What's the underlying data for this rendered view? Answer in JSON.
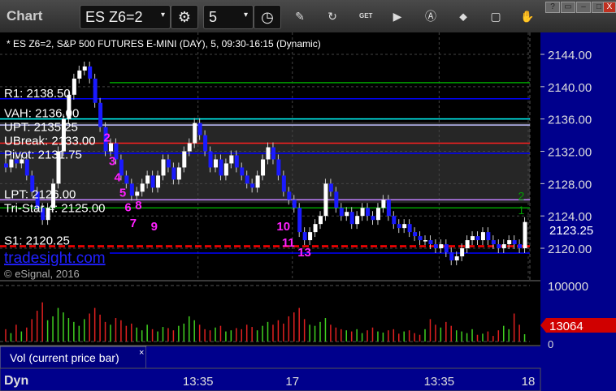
{
  "window": {
    "title": "Chart",
    "symbol": "ES Z6=2",
    "interval": "5",
    "buttons": [
      "?",
      "▭",
      "–",
      "□",
      "X"
    ]
  },
  "toolbar_icons": [
    "settings-icon",
    "clock-icon",
    "pencil-icon",
    "refresh-icon",
    "get-icon",
    "play-icon",
    "alert-icon",
    "link-icon",
    "comment-icon",
    "hand-icon"
  ],
  "chart_data": {
    "type": "candlestick",
    "title": "* ES Z6=2, S&P 500 FUTURES E-MINI (DAY), 5, 09:30-16:15 (Dynamic)",
    "ylim": [
      2116,
      2146
    ],
    "yticks": [
      "2144.00",
      "2140.00",
      "2136.00",
      "2132.00",
      "2128.00",
      "2124.00",
      "2120.00"
    ],
    "last_price": "2123.25",
    "xticks": [
      {
        "bar": 37,
        "label": "13:35"
      },
      {
        "bar": 55,
        "label": "17"
      },
      {
        "bar": 83,
        "label": "13:35"
      },
      {
        "bar": 100,
        "label": "18"
      }
    ],
    "closes": [
      2130,
      2131,
      2130.5,
      2131,
      2129,
      2127,
      2125,
      2123.5,
      2125,
      2128,
      2132,
      2136,
      2139,
      2141,
      2142,
      2142.5,
      2141,
      2138,
      2135,
      2132,
      2133,
      2131,
      2129,
      2128,
      2126.5,
      2127,
      2128,
      2129,
      2127.5,
      2129,
      2131,
      2130,
      2128.5,
      2130,
      2132,
      2133,
      2135.5,
      2134,
      2132,
      2130,
      2131,
      2129,
      2130.5,
      2131.5,
      2130,
      2129,
      2128,
      2127.5,
      2129,
      2131,
      2132.5,
      2131,
      2129,
      2127,
      2126,
      2125,
      2122,
      2121,
      2122,
      2123,
      2124,
      2128,
      2127,
      2125,
      2124,
      2124.5,
      2123,
      2124,
      2125,
      2124,
      2123.5,
      2125,
      2126,
      2124,
      2123,
      2122.5,
      2123,
      2122,
      2121.5,
      2121,
      2121,
      2120.5,
      2120,
      2120.5,
      2119.5,
      2118.5,
      2119,
      2120,
      2121,
      2121.5,
      2121,
      2122,
      2121,
      2120.5,
      2120,
      2120.5,
      2121,
      2120.5,
      2120,
      2123.25
    ],
    "levels": [
      {
        "label": "R1: 2138.50",
        "price": 2138.5,
        "color": "#0000ff"
      },
      {
        "label": "VAH: 2136.00",
        "price": 2136.0,
        "color": "#00ffff"
      },
      {
        "label": "UPT: 2135.25",
        "price": 2135.25,
        "color": "#c0c0ff"
      },
      {
        "label": "UBreak: 2133.00",
        "price": 2133.0,
        "color": "#ff2020"
      },
      {
        "label": "Pivot: 2131.75",
        "price": 2131.75,
        "color": "#0000ff"
      },
      {
        "label": "LPT: 2126.00",
        "price": 2126.0,
        "color": "#c080ff"
      },
      {
        "label": "Tri-Star 4: 2125.00",
        "price": 2125.0,
        "color": "#00a000"
      },
      {
        "label": "S1: 2120.25",
        "price": 2120.25,
        "color": "#ff0000",
        "dashed": true
      }
    ],
    "extra_lines": [
      {
        "price": 2140.5,
        "color": "#00a000"
      },
      {
        "price": 2119.4,
        "color": "#0000ff"
      }
    ],
    "counts": [
      {
        "text": "2",
        "bar": 19,
        "price": 2133.2
      },
      {
        "text": "3",
        "bar": 20,
        "price": 2130.3
      },
      {
        "text": "4",
        "bar": 21,
        "price": 2129.1
      },
      {
        "text": "5",
        "bar": 22,
        "price": 2127.6
      },
      {
        "text": "6",
        "bar": 23,
        "price": 2125.4
      },
      {
        "text": "7",
        "bar": 24,
        "price": 2125.0
      },
      {
        "text": "8",
        "bar": 25,
        "price": 2124.8
      },
      {
        "text": "9",
        "bar": 28,
        "price": 2122.2
      },
      {
        "text": "10",
        "bar": 52,
        "price": 2122.2
      },
      {
        "text": "11",
        "bar": 53,
        "price": 2121.0
      },
      {
        "text": "13",
        "bar": 56,
        "price": 2119.0
      }
    ],
    "green_counts": [
      {
        "text": "2",
        "bar": 99,
        "price": 2126.0
      },
      {
        "text": "1",
        "bar": 99,
        "price": 2125.0
      }
    ],
    "volume": {
      "label": "Vol (current price bar)",
      "max_tick": "100000",
      "min_tick": "0",
      "last": "13064",
      "values": [
        22000,
        15000,
        30000,
        18000,
        25000,
        40000,
        55000,
        70000,
        38000,
        45000,
        60000,
        52000,
        42000,
        35000,
        28000,
        40000,
        50000,
        60000,
        48000,
        35000,
        30000,
        42000,
        38000,
        28000,
        32000,
        25000,
        20000,
        30000,
        22000,
        18000,
        26000,
        24000,
        20000,
        28000,
        32000,
        45000,
        38000,
        30000,
        22000,
        20000,
        25000,
        28000,
        18000,
        20000,
        24000,
        22000,
        30000,
        26000,
        20000,
        28000,
        35000,
        30000,
        38000,
        32000,
        45000,
        52000,
        60000,
        40000,
        30000,
        28000,
        35000,
        42000,
        30000,
        25000,
        22000,
        20000,
        18000,
        22000,
        15000,
        20000,
        25000,
        18000,
        16000,
        20000,
        22000,
        14000,
        18000,
        20000,
        15000,
        12000,
        22000,
        40000,
        30000,
        25000,
        35000,
        28000,
        20000,
        18000,
        15000,
        22000,
        12000,
        14000,
        18000,
        10000,
        20000,
        28000,
        22000,
        50000,
        30000,
        13064
      ]
    }
  },
  "watermark": {
    "site": "tradesight.com",
    "copyright": "© eSignal, 2016"
  },
  "bottom": {
    "label": "Dyn"
  }
}
